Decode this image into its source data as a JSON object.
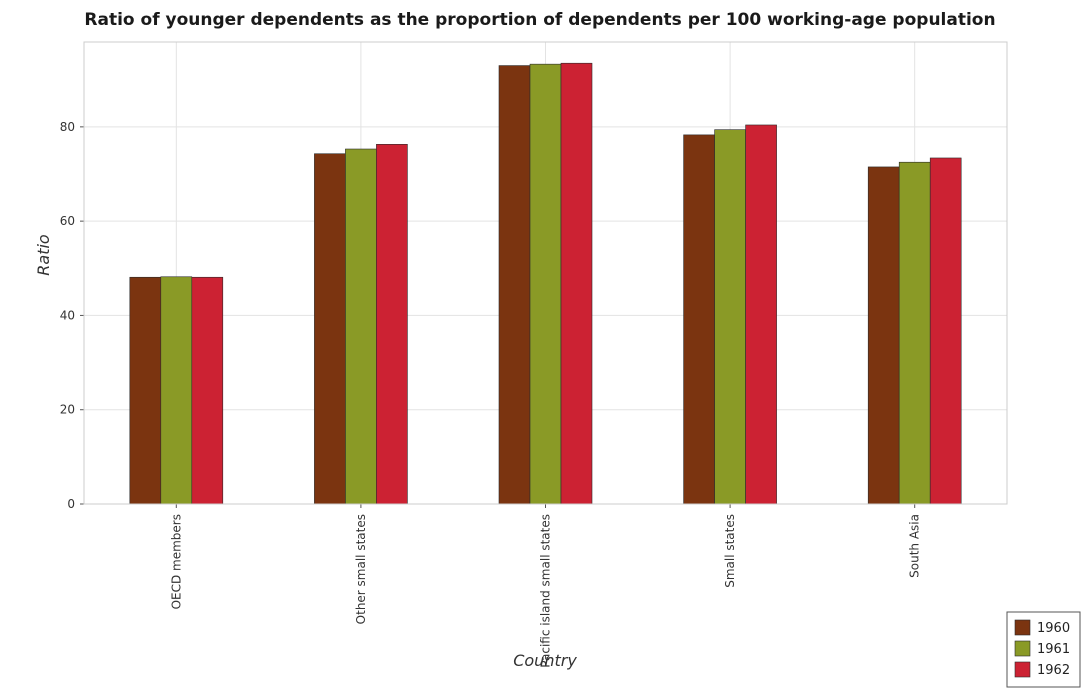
{
  "chart_data": {
    "type": "bar",
    "title": "Ratio of younger dependents as the proportion of dependents per 100 working-age population",
    "xlabel": "Country",
    "ylabel": "Ratio",
    "categories": [
      "OECD members",
      "Other small states",
      "Pacific island small states",
      "Small states",
      "South Asia"
    ],
    "series": [
      {
        "name": "1960",
        "color": "#7b3410",
        "values": [
          48.1,
          74.3,
          93.0,
          78.3,
          71.5
        ]
      },
      {
        "name": "1961",
        "color": "#8a9a26",
        "values": [
          48.2,
          75.3,
          93.3,
          79.4,
          72.5
        ]
      },
      {
        "name": "1962",
        "color": "#cc2233",
        "values": [
          48.1,
          76.3,
          93.5,
          80.4,
          73.4
        ]
      }
    ],
    "ylim": [
      0,
      98
    ],
    "yticks": [
      0,
      20,
      40,
      60,
      80
    ],
    "grid": true,
    "legend_position": "bottom-right"
  }
}
